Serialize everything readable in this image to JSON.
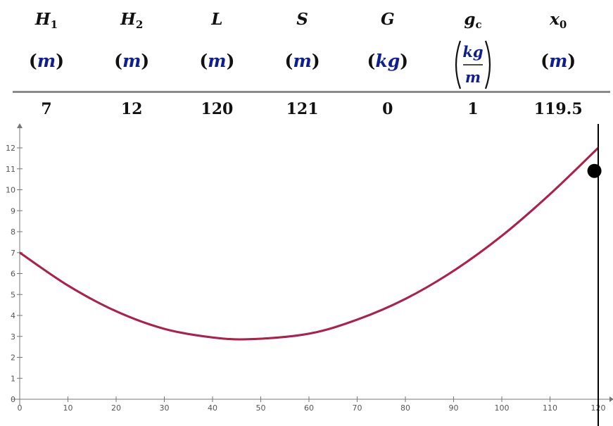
{
  "params": [
    {
      "name": "H",
      "sub": "1",
      "unit": "m",
      "value": "7"
    },
    {
      "name": "H",
      "sub": "2",
      "unit": "m",
      "value": "12"
    },
    {
      "name": "L",
      "sub": "",
      "unit": "m",
      "value": "120"
    },
    {
      "name": "S",
      "sub": "",
      "unit": "m",
      "value": "121"
    },
    {
      "name": "G",
      "sub": "",
      "unit": "kg",
      "value": "0"
    },
    {
      "name": "g",
      "sub": "c",
      "unit_num": "kg",
      "unit_den": "m",
      "value": "1"
    },
    {
      "name": "x",
      "sub": "0",
      "unit": "m",
      "value": "119.5"
    }
  ],
  "chart_data": {
    "type": "line",
    "title": "",
    "xlabel": "",
    "ylabel": "",
    "xlim": [
      0,
      120
    ],
    "ylim": [
      0,
      12.5
    ],
    "x_ticks": [
      0,
      10,
      20,
      30,
      40,
      50,
      60,
      70,
      80,
      90,
      100,
      110,
      120
    ],
    "y_ticks": [
      0,
      1,
      2,
      3,
      4,
      5,
      6,
      7,
      8,
      9,
      10,
      11,
      12
    ],
    "series": [
      {
        "color": "#c21a3a",
        "x": [
          0,
          10,
          20,
          30,
          40,
          48,
          60,
          70,
          80,
          90,
          100,
          110,
          120
        ],
        "y": [
          7.0,
          5.43,
          4.2,
          3.36,
          2.95,
          2.87,
          3.13,
          3.8,
          4.79,
          6.13,
          7.8,
          9.79,
          12.0
        ]
      },
      {
        "color": "#2233aa",
        "x": [
          0,
          10,
          20,
          30,
          40,
          48,
          60,
          70,
          80,
          90,
          100,
          110,
          120
        ],
        "y": [
          7.0,
          5.43,
          4.2,
          3.36,
          2.95,
          2.87,
          3.13,
          3.8,
          4.79,
          6.13,
          7.8,
          9.79,
          12.0
        ]
      }
    ],
    "marker": {
      "x": 119.5,
      "y": 10.9
    },
    "vertical_line_x": 120,
    "grid": false
  }
}
